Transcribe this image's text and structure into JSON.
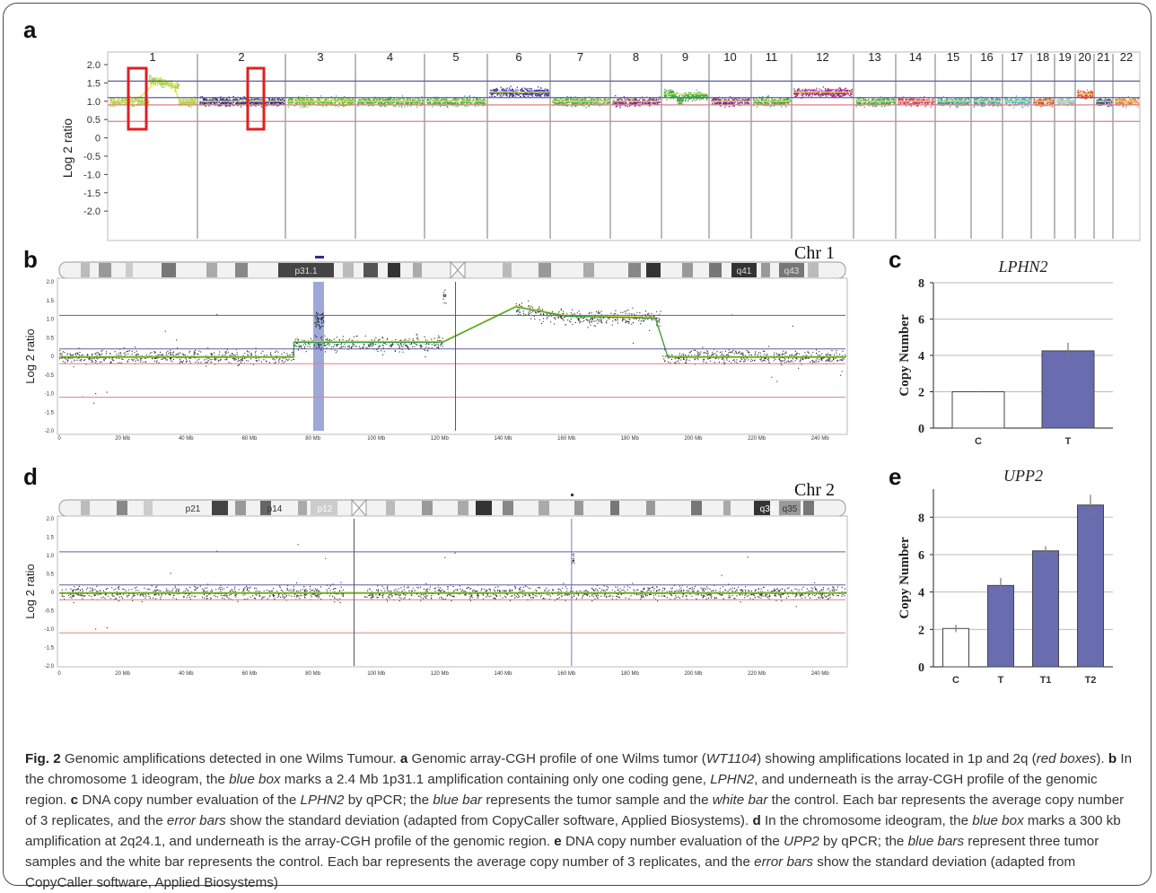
{
  "panels": {
    "a": {
      "label": "a",
      "ylabel": "Log 2 ratio",
      "yticks": [
        "2.0",
        "1.5",
        "1.0",
        "0.5",
        "0",
        "-0.5",
        "-1.0",
        "-1.5",
        "-2.0"
      ],
      "chromosomes": [
        "1",
        "2",
        "3",
        "4",
        "5",
        "6",
        "7",
        "8",
        "9",
        "10",
        "11",
        "12",
        "13",
        "14",
        "15",
        "16",
        "17",
        "18",
        "19",
        "20",
        "21",
        "22"
      ]
    },
    "b": {
      "label": "b",
      "chr_title": "Chr 1",
      "band_labels": [
        "p31.1",
        "q41",
        "q43"
      ],
      "yticks": [
        "2.0",
        "1.5",
        "1.0",
        "0.5",
        "0",
        "-0.5",
        "-1.0",
        "-1.5",
        "-2.0"
      ],
      "ylabel": "Log 2 ratio",
      "xticks": [
        "0",
        "20 Mb",
        "40 Mb",
        "60 Mb",
        "80 Mb",
        "100 Mb",
        "120 Mb",
        "140 Mb",
        "160 Mb",
        "180 Mb",
        "200 Mb",
        "220 Mb",
        "240 Mb"
      ]
    },
    "d": {
      "label": "d",
      "chr_title": "Chr 2",
      "band_labels": [
        "p21",
        "p14",
        "p12",
        "q34",
        "q35"
      ],
      "yticks": [
        "2.0",
        "1.5",
        "1.0",
        "0.5",
        "0",
        "-0.5",
        "-1.0",
        "-1.5",
        "-2.0"
      ],
      "ylabel": "Log 2 ratio",
      "xticks": [
        "0",
        "20 Mb",
        "40 Mb",
        "60 Mb",
        "80 Mb",
        "100 Mb",
        "120 Mb",
        "140 Mb",
        "160 Mb",
        "180 Mb",
        "200 Mb",
        "220 Mb",
        "240 Mb"
      ]
    }
  },
  "chart_data": [
    {
      "panel": "c",
      "type": "bar",
      "title": "LPHN2",
      "ylabel": "Copy Number",
      "categories": [
        "C",
        "T"
      ],
      "values": [
        2.0,
        4.25
      ],
      "errors": [
        0.03,
        0.45
      ],
      "bar_colors": [
        "#ffffff",
        "#6a6cb0"
      ],
      "ylim": [
        0,
        8
      ],
      "yticks": [
        "0",
        "2",
        "4",
        "6",
        "8"
      ]
    },
    {
      "panel": "e",
      "type": "bar",
      "title": "UPP2",
      "ylabel": "Copy Number",
      "categories": [
        "C",
        "T",
        "T1",
        "T2"
      ],
      "values": [
        2.05,
        4.35,
        6.2,
        8.65
      ],
      "errors": [
        0.2,
        0.4,
        0.25,
        0.55
      ],
      "bar_colors": [
        "#ffffff",
        "#6a6cb0",
        "#6a6cb0",
        "#6a6cb0"
      ],
      "ylim": [
        0,
        9.5
      ],
      "yticks": [
        "0",
        "2",
        "4",
        "6",
        "8"
      ]
    }
  ],
  "caption": {
    "fig_label": "Fig. 2",
    "title": "Genomic amplifications detected in one Wilms Tumour.",
    "parts": [
      {
        "b": "a"
      },
      {
        "t": " Genomic array-CGH profile of one Wilms tumor ("
      },
      {
        "i": "WT1104"
      },
      {
        "t": ") showing amplifications located in 1p and 2q ("
      },
      {
        "i": "red boxes"
      },
      {
        "t": "). "
      },
      {
        "b": "b"
      },
      {
        "t": " In the chromosome 1 ideogram, the "
      },
      {
        "i": "blue box"
      },
      {
        "t": " marks a 2.4 Mb 1p31.1 amplification containing only one coding gene, "
      },
      {
        "i": "LPHN2"
      },
      {
        "t": ", and underneath is the array-CGH profile of the genomic region. "
      },
      {
        "b": "c"
      },
      {
        "t": " DNA copy number evaluation of the "
      },
      {
        "i": "LPHN2"
      },
      {
        "t": " by qPCR; the "
      },
      {
        "i": "blue bar"
      },
      {
        "t": " represents the tumor sample and the "
      },
      {
        "i": "white bar"
      },
      {
        "t": " the control. Each bar represents the average copy number of 3 replicates, and the "
      },
      {
        "i": "error bars"
      },
      {
        "t": " show the standard deviation (adapted from CopyCaller software, Applied Biosystems). "
      },
      {
        "b": "d"
      },
      {
        "t": " In the chromosome ideogram, the "
      },
      {
        "i": "blue box"
      },
      {
        "t": " marks a 300 kb amplification at 2q24.1, and underneath is the array-CGH profile of the genomic region. "
      },
      {
        "b": "e"
      },
      {
        "t": " DNA copy number evaluation of the "
      },
      {
        "i": "UPP2"
      },
      {
        "t": " by qPCR; the "
      },
      {
        "i": "blue bars"
      },
      {
        "t": " represent three tumor samples and the white bar represents the control. Each bar represents the average copy number of 3 replicates, and the "
      },
      {
        "i": "error bars"
      },
      {
        "t": " show the standard deviation (adapted from CopyCaller software, Applied Biosystems)"
      }
    ]
  },
  "colors": {
    "blue_line": "#5b5fa6",
    "red_line": "#e08080",
    "box_red": "#e02020",
    "bar_blue": "#6a6cb0"
  }
}
